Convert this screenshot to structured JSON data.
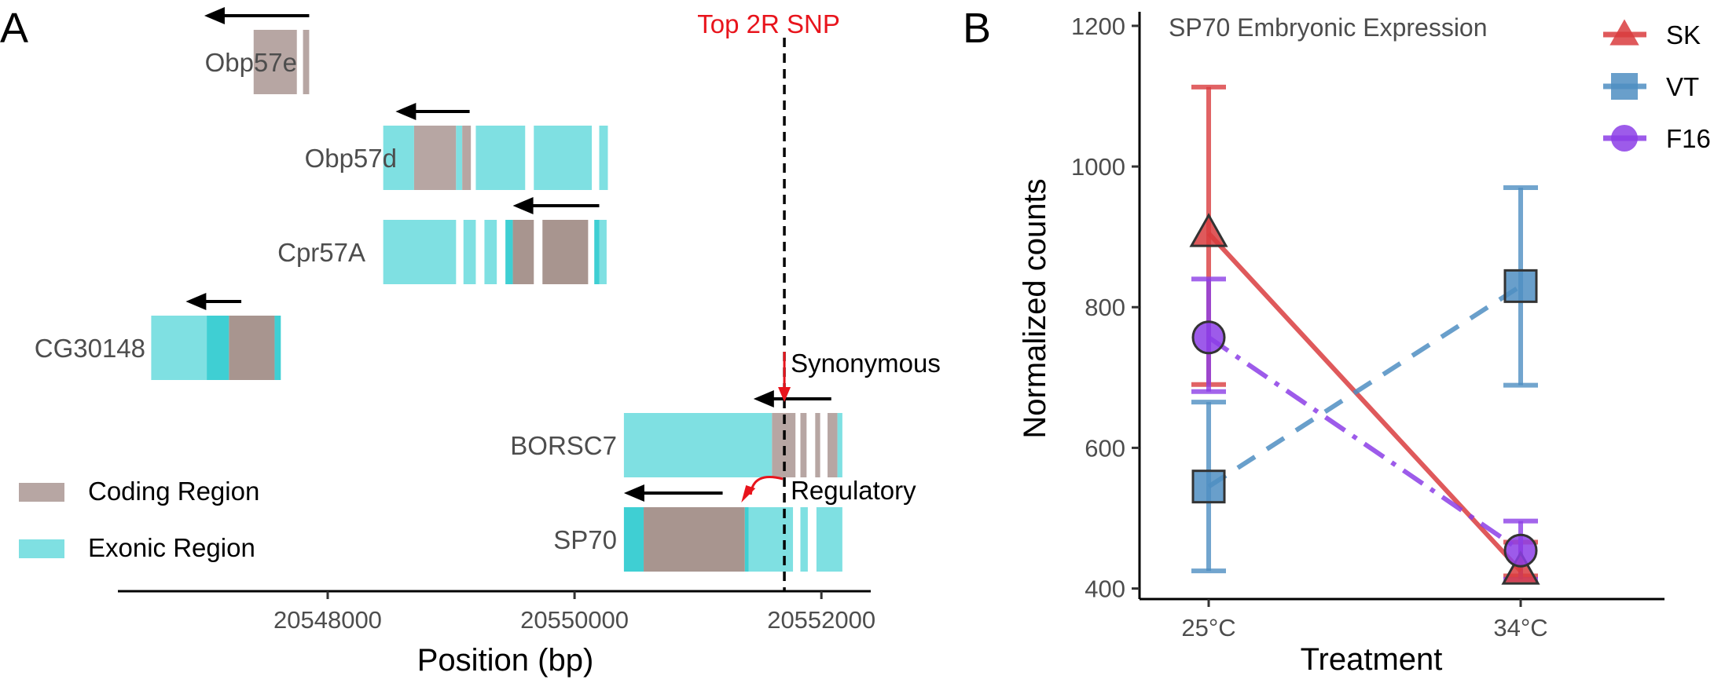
{
  "chart_data": [
    {
      "type": "gene-track",
      "panel": "A",
      "xlabel": "Position (bp)",
      "x_ticks": [
        20548000,
        20550000,
        20552000
      ],
      "x_tick_labels": [
        "20548000",
        "20550000",
        "20552000"
      ],
      "xlim": [
        20546300,
        20552400
      ],
      "snp": {
        "label": "Top 2R SNP",
        "position": 20551700,
        "color": "#e8141c"
      },
      "legend": [
        {
          "label": "Coding Region",
          "color": "#b7a6a3"
        },
        {
          "label": "Exonic Region",
          "color": "#7fe0e2"
        }
      ],
      "colors": {
        "coding": "#b7a6a3",
        "coding_dark": "#a8958f",
        "exonic": "#7fe0e2",
        "exonic_dark": "#3fcfd3",
        "snp": "#e8141c"
      },
      "genes": [
        {
          "name": "Obp57e",
          "strand": "-",
          "arrow": [
            20547000,
            20547850
          ],
          "segments": [
            {
              "start": 20547400,
              "end": 20547750,
              "type": "coding"
            },
            {
              "start": 20547800,
              "end": 20547850,
              "type": "coding"
            }
          ]
        },
        {
          "name": "Obp57d",
          "strand": "-",
          "arrow": [
            20548550,
            20549150
          ],
          "segments": [
            {
              "start": 20548450,
              "end": 20548700,
              "type": "exonic"
            },
            {
              "start": 20548700,
              "end": 20549040,
              "type": "coding"
            },
            {
              "start": 20549040,
              "end": 20549090,
              "type": "exonic"
            },
            {
              "start": 20549090,
              "end": 20549160,
              "type": "coding"
            },
            {
              "start": 20549200,
              "end": 20549600,
              "type": "exonic"
            },
            {
              "start": 20549670,
              "end": 20550140,
              "type": "exonic"
            },
            {
              "start": 20550200,
              "end": 20550270,
              "type": "exonic"
            }
          ]
        },
        {
          "name": "Cpr57A",
          "strand": "-",
          "arrow": [
            20549500,
            20550200
          ],
          "segments": [
            {
              "start": 20548450,
              "end": 20549040,
              "type": "exonic"
            },
            {
              "start": 20549100,
              "end": 20549200,
              "type": "exonic"
            },
            {
              "start": 20549270,
              "end": 20549370,
              "type": "exonic"
            },
            {
              "start": 20549440,
              "end": 20549500,
              "type": "exonic_dark"
            },
            {
              "start": 20549500,
              "end": 20549670,
              "type": "coding_dark"
            },
            {
              "start": 20549740,
              "end": 20550110,
              "type": "coding_dark"
            },
            {
              "start": 20550160,
              "end": 20550200,
              "type": "exonic_dark"
            },
            {
              "start": 20550200,
              "end": 20550260,
              "type": "exonic"
            }
          ]
        },
        {
          "name": "CG30148",
          "strand": "-",
          "arrow": [
            20546850,
            20547300
          ],
          "segments": [
            {
              "start": 20546570,
              "end": 20547020,
              "type": "exonic"
            },
            {
              "start": 20547020,
              "end": 20547200,
              "type": "exonic_dark"
            },
            {
              "start": 20547200,
              "end": 20547570,
              "type": "coding_dark"
            },
            {
              "start": 20547570,
              "end": 20547620,
              "type": "exonic_dark"
            }
          ]
        },
        {
          "name": "BORSC7",
          "strand": "-",
          "arrow": [
            20551450,
            20552080
          ],
          "segments": [
            {
              "start": 20550400,
              "end": 20551600,
              "type": "exonic"
            },
            {
              "start": 20551600,
              "end": 20551790,
              "type": "coding"
            },
            {
              "start": 20551830,
              "end": 20551880,
              "type": "coding"
            },
            {
              "start": 20551950,
              "end": 20551990,
              "type": "coding"
            },
            {
              "start": 20552050,
              "end": 20552130,
              "type": "coding"
            },
            {
              "start": 20552130,
              "end": 20552170,
              "type": "exonic"
            }
          ]
        },
        {
          "name": "SP70",
          "strand": "-",
          "arrow": [
            20550400,
            20551200
          ],
          "segments": [
            {
              "start": 20550400,
              "end": 20550560,
              "type": "exonic_dark"
            },
            {
              "start": 20550560,
              "end": 20551380,
              "type": "coding_dark"
            },
            {
              "start": 20551380,
              "end": 20551410,
              "type": "exonic_dark"
            },
            {
              "start": 20551410,
              "end": 20551770,
              "type": "exonic"
            },
            {
              "start": 20551830,
              "end": 20551890,
              "type": "exonic"
            },
            {
              "start": 20551960,
              "end": 20552170,
              "type": "exonic"
            }
          ]
        }
      ],
      "annotations": [
        {
          "label": "Synonymous",
          "gene": "BORSC7",
          "target": 20551700
        },
        {
          "label": "Regulatory",
          "gene": "SP70",
          "target": 20551300
        }
      ]
    },
    {
      "type": "line",
      "panel": "B",
      "title": "SP70 Embryonic Expression",
      "xlabel": "Treatment",
      "ylabel": "Normalized counts",
      "categories": [
        "25°C",
        "34°C"
      ],
      "ylim": [
        385,
        1220
      ],
      "y_ticks": [
        400,
        600,
        800,
        1000,
        1200
      ],
      "y_tick_labels": [
        "400",
        "600",
        "800",
        "1000",
        "1200"
      ],
      "legend_position": "top-right",
      "series": [
        {
          "name": "SK",
          "color": "#d93c3e",
          "marker": "triangle",
          "dash": "solid",
          "values": [
            905,
            425
          ],
          "err_low": [
            690,
            418
          ],
          "err_high": [
            1113,
            466
          ]
        },
        {
          "name": "VT",
          "color": "#4f8ec2",
          "marker": "square",
          "dash": "dashed",
          "values": [
            545,
            830
          ],
          "err_low": [
            425,
            689
          ],
          "err_high": [
            665,
            970
          ]
        },
        {
          "name": "F16",
          "color": "#8c3ee6",
          "marker": "circle",
          "dash": "dashdot",
          "values": [
            757,
            454
          ],
          "err_low": [
            680,
            413
          ],
          "err_high": [
            840,
            496
          ]
        }
      ]
    }
  ]
}
